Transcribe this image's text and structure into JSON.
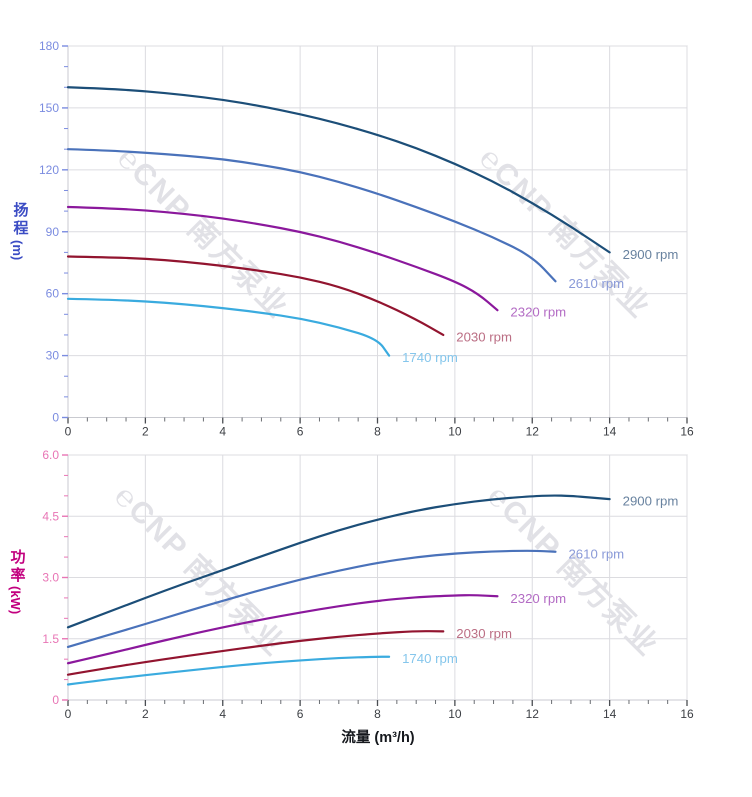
{
  "page": {
    "background": "#ffffff"
  },
  "watermark": {
    "logo": "℮",
    "text": "CNP 南方泵业",
    "color": "#e1e1e6"
  },
  "chart_data": [
    {
      "id": "head",
      "type": "line",
      "title": "",
      "x_axis": {
        "title": "",
        "min": 0,
        "max": 16,
        "major": 2,
        "minor": 0.5,
        "tick_labels": [
          "0",
          "2",
          "4",
          "6",
          "8",
          "10",
          "12",
          "14",
          "16"
        ],
        "tick_label_color": "#3d4045"
      },
      "y_axis": {
        "title_chars": "扬程",
        "unit": "(m)",
        "title_color": "#3b4cc4",
        "min": 0,
        "max": 180,
        "major": 30,
        "minor": 10,
        "tick_labels": [
          "0",
          "30",
          "60",
          "90",
          "120",
          "150",
          "180"
        ],
        "tick_color": "#7b8ce0"
      },
      "grid": true,
      "legend_position": "at-line-end",
      "series": [
        {
          "name": "2900 rpm",
          "color": "#1c4e78",
          "label_color": "#68829f",
          "points": [
            [
              0,
              160
            ],
            [
              1,
              159.3
            ],
            [
              2,
              158.1
            ],
            [
              3,
              156.3
            ],
            [
              4,
              154
            ],
            [
              5,
              150.8
            ],
            [
              6,
              147
            ],
            [
              7,
              142.4
            ],
            [
              8,
              137
            ],
            [
              9,
              130.6
            ],
            [
              10,
              123
            ],
            [
              11,
              114.3
            ],
            [
              12,
              104
            ],
            [
              13,
              92.5
            ],
            [
              14,
              80
            ]
          ]
        },
        {
          "name": "2610 rpm",
          "color": "#4a72ba",
          "label_color": "#8a9ad8",
          "points": [
            [
              0,
              130
            ],
            [
              1,
              129.4
            ],
            [
              2,
              128.3
            ],
            [
              3,
              126.9
            ],
            [
              4,
              125.2
            ],
            [
              5,
              122.4
            ],
            [
              6,
              119
            ],
            [
              7,
              114.2
            ],
            [
              8,
              108.5
            ],
            [
              9,
              102
            ],
            [
              10,
              95
            ],
            [
              11,
              87.3
            ],
            [
              12,
              78
            ],
            [
              12.6,
              66
            ]
          ]
        },
        {
          "name": "2320 rpm",
          "color": "#8b189c",
          "label_color": "#b36cc4",
          "points": [
            [
              0,
              102
            ],
            [
              1,
              101.4
            ],
            [
              2,
              100.4
            ],
            [
              3,
              98.7
            ],
            [
              4,
              96.5
            ],
            [
              5,
              93.5
            ],
            [
              6,
              90
            ],
            [
              7,
              85.3
            ],
            [
              8,
              79.5
            ],
            [
              9,
              73
            ],
            [
              10,
              66
            ],
            [
              10.6,
              60
            ],
            [
              11.1,
              52
            ]
          ]
        },
        {
          "name": "2030 rpm",
          "color": "#92142f",
          "label_color": "#bb6e84",
          "points": [
            [
              0,
              78
            ],
            [
              1,
              77.6
            ],
            [
              2,
              77
            ],
            [
              3,
              75.5
            ],
            [
              4,
              73.5
            ],
            [
              5,
              71
            ],
            [
              6,
              68
            ],
            [
              7,
              63.5
            ],
            [
              8,
              56.5
            ],
            [
              9,
              47.5
            ],
            [
              9.7,
              40
            ]
          ]
        },
        {
          "name": "1740 rpm",
          "color": "#3aabdf",
          "label_color": "#85c6ec",
          "points": [
            [
              0,
              57.5
            ],
            [
              1,
              57.1
            ],
            [
              2,
              56.3
            ],
            [
              3,
              54.9
            ],
            [
              4,
              53
            ],
            [
              5,
              50.8
            ],
            [
              6,
              48
            ],
            [
              7,
              43.8
            ],
            [
              8,
              38
            ],
            [
              8.3,
              30
            ]
          ]
        }
      ]
    },
    {
      "id": "power",
      "type": "line",
      "title": "",
      "x_axis": {
        "title": "流量 (m³/h)",
        "min": 0,
        "max": 16,
        "major": 2,
        "minor": 0.5,
        "tick_labels": [
          "0",
          "2",
          "4",
          "6",
          "8",
          "10",
          "12",
          "14",
          "16"
        ],
        "tick_label_color": "#3d4045"
      },
      "y_axis": {
        "title_chars": "功率",
        "unit": "(kW)",
        "title_color": "#c2007f",
        "min": 0,
        "max": 6,
        "major": 1.5,
        "minor": 0.5,
        "tick_labels": [
          "0",
          "1.5",
          "3.0",
          "4.5",
          "6.0"
        ],
        "tick_color": "#e875b5"
      },
      "grid": true,
      "legend_position": "at-line-end",
      "series": [
        {
          "name": "2900 rpm",
          "color": "#1c4e78",
          "label_color": "#68829f",
          "points": [
            [
              0,
              1.78
            ],
            [
              1,
              2.14
            ],
            [
              2,
              2.5
            ],
            [
              3,
              2.85
            ],
            [
              4,
              3.18
            ],
            [
              5,
              3.52
            ],
            [
              6,
              3.85
            ],
            [
              7,
              4.16
            ],
            [
              8,
              4.42
            ],
            [
              9,
              4.64
            ],
            [
              10,
              4.8
            ],
            [
              11,
              4.92
            ],
            [
              12,
              4.99
            ],
            [
              12.5,
              5.01
            ],
            [
              13,
              5.0
            ],
            [
              14,
              4.92
            ]
          ]
        },
        {
          "name": "2610 rpm",
          "color": "#4a72ba",
          "label_color": "#8a9ad8",
          "points": [
            [
              0,
              1.3
            ],
            [
              1,
              1.58
            ],
            [
              2,
              1.86
            ],
            [
              3,
              2.15
            ],
            [
              4,
              2.43
            ],
            [
              5,
              2.7
            ],
            [
              6,
              2.95
            ],
            [
              7,
              3.17
            ],
            [
              8,
              3.36
            ],
            [
              9,
              3.5
            ],
            [
              10,
              3.59
            ],
            [
              11,
              3.64
            ],
            [
              12,
              3.66
            ],
            [
              12.6,
              3.63
            ]
          ]
        },
        {
          "name": "2320 rpm",
          "color": "#8b189c",
          "label_color": "#b36cc4",
          "points": [
            [
              0,
              0.9
            ],
            [
              1,
              1.12
            ],
            [
              2,
              1.35
            ],
            [
              3,
              1.57
            ],
            [
              4,
              1.78
            ],
            [
              5,
              1.97
            ],
            [
              6,
              2.14
            ],
            [
              7,
              2.3
            ],
            [
              8,
              2.43
            ],
            [
              9,
              2.52
            ],
            [
              10,
              2.56
            ],
            [
              10.5,
              2.57
            ],
            [
              11.1,
              2.54
            ]
          ]
        },
        {
          "name": "2030 rpm",
          "color": "#92142f",
          "label_color": "#bb6e84",
          "points": [
            [
              0,
              0.62
            ],
            [
              1,
              0.78
            ],
            [
              2,
              0.93
            ],
            [
              3,
              1.07
            ],
            [
              4,
              1.2
            ],
            [
              5,
              1.33
            ],
            [
              6,
              1.45
            ],
            [
              7,
              1.55
            ],
            [
              8,
              1.63
            ],
            [
              9,
              1.69
            ],
            [
              9.7,
              1.68
            ]
          ]
        },
        {
          "name": "1740 rpm",
          "color": "#3aabdf",
          "label_color": "#85c6ec",
          "points": [
            [
              0,
              0.38
            ],
            [
              1,
              0.5
            ],
            [
              2,
              0.61
            ],
            [
              3,
              0.71
            ],
            [
              4,
              0.81
            ],
            [
              5,
              0.9
            ],
            [
              6,
              0.97
            ],
            [
              7,
              1.03
            ],
            [
              8,
              1.06
            ],
            [
              8.3,
              1.06
            ]
          ]
        }
      ]
    }
  ]
}
